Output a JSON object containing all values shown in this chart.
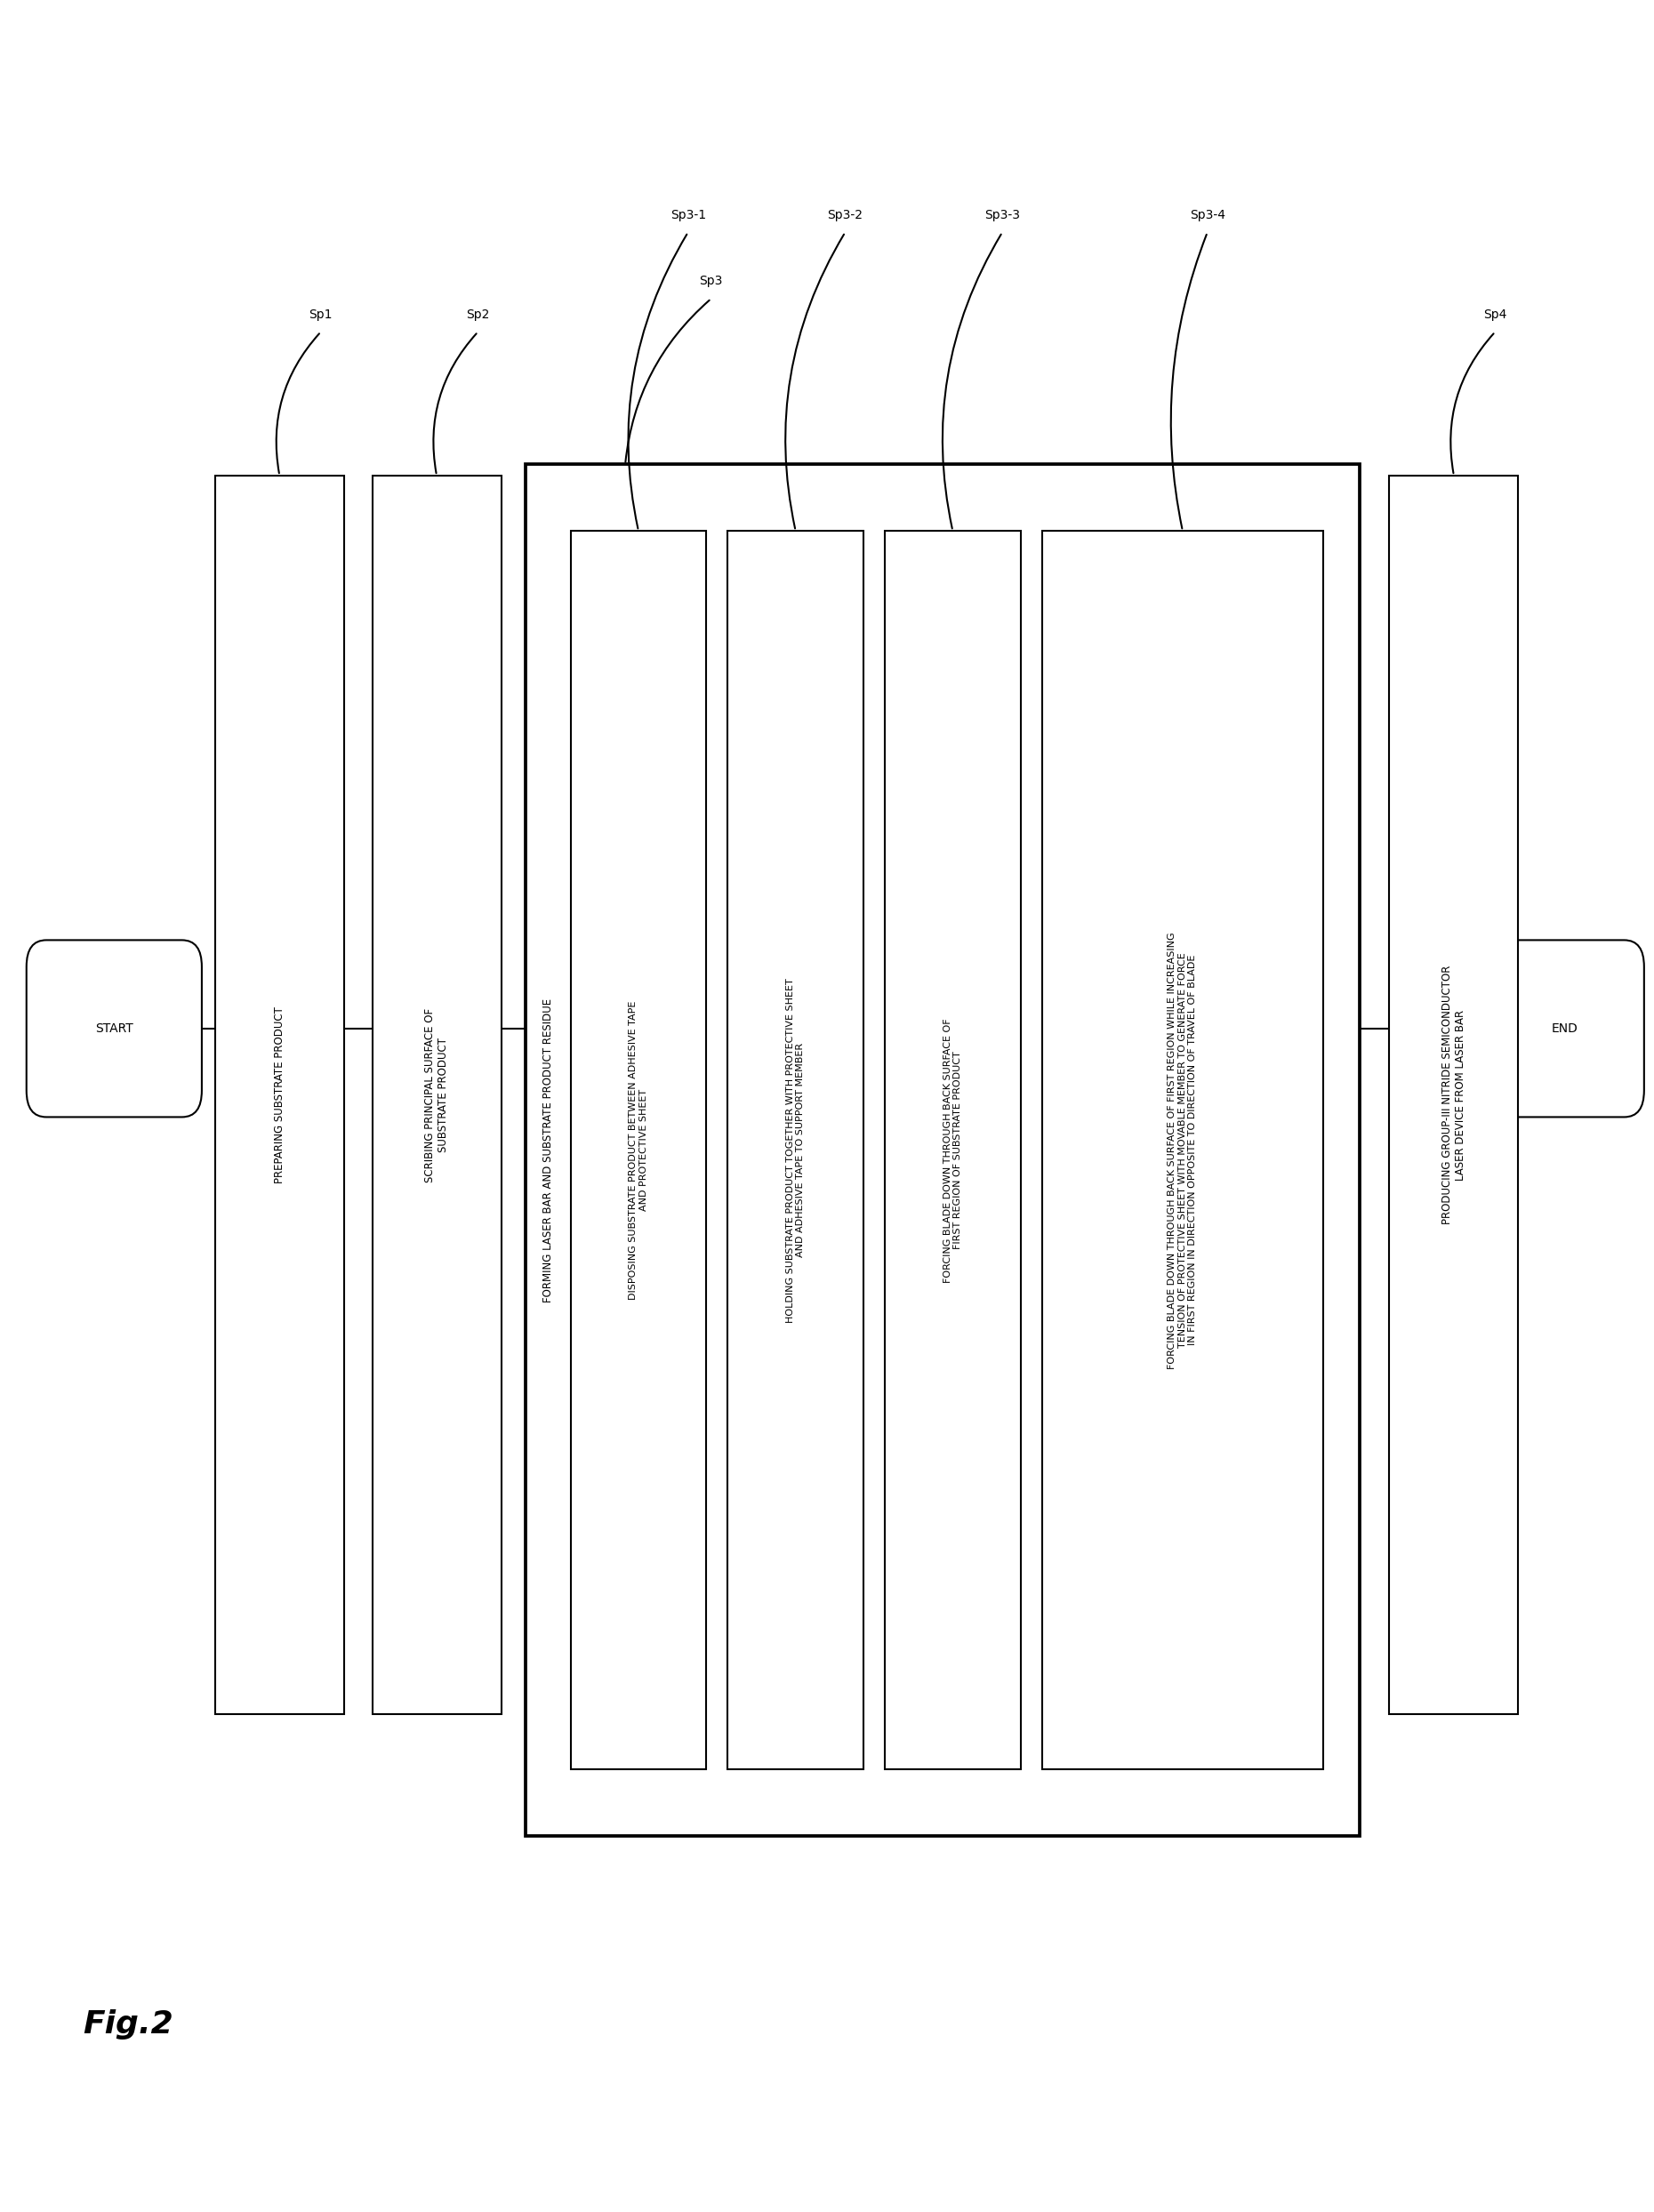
{
  "bg_color": "#ffffff",
  "fig_label": "Fig.2",
  "box_edge_color": "#000000",
  "box_face_color": "#ffffff",
  "text_color": "#000000",
  "font_size_box": 8.5,
  "font_size_label": 10.0,
  "font_size_fig": 26,
  "line_width": 1.5,
  "start_text": "START",
  "end_text": "END",
  "sp1_text": "PREPARING SUBSTRATE PRODUCT",
  "sp1_label": "Sp1",
  "sp2_text": "SCRIBING PRINCIPAL SURFACE OF\nSUBSTRATE PRODUCT",
  "sp2_label": "Sp2",
  "sp3_text": "FORMING LASER BAR AND SUBSTRATE PRODUCT RESIDUE",
  "sp3_label": "Sp3",
  "sp31_text": "DISPOSING SUBSTRATE PRODUCT BETWEEN ADHESIVE TAPE\nAND PROTECTIVE SHEET",
  "sp31_label": "Sp3-1",
  "sp32_text": "HOLDING SUBSTRATE PRODUCT TOGETHER WITH PROTECTIVE SHEET\nAND ADHESIVE TAPE TO SUPPORT MEMBER",
  "sp32_label": "Sp3-2",
  "sp33_text": "FORCING BLADE DOWN THROUGH BACK SURFACE OF\nFIRST REGION OF SUBSTRATE PRODUCT",
  "sp33_label": "Sp3-3",
  "sp34_text": "FORCING BLADE DOWN THROUGH BACK SURFACE OF FIRST REGION WHILE INCREASING\nTENSION OF PROTECTIVE SHEET WITH MOVABLE MEMBER TO GENERATE FORCE\nIN FIRST REGION IN DIRECTION OPPOSITE TO DIRECTION OF TRAVEL OF BLADE",
  "sp34_label": "Sp3-4",
  "sp4_text": "PRODUCING GROUP-III NITRIDE SEMICONDUCTOR\nLASER DEVICE FROM LASER BAR",
  "sp4_label": "Sp4"
}
